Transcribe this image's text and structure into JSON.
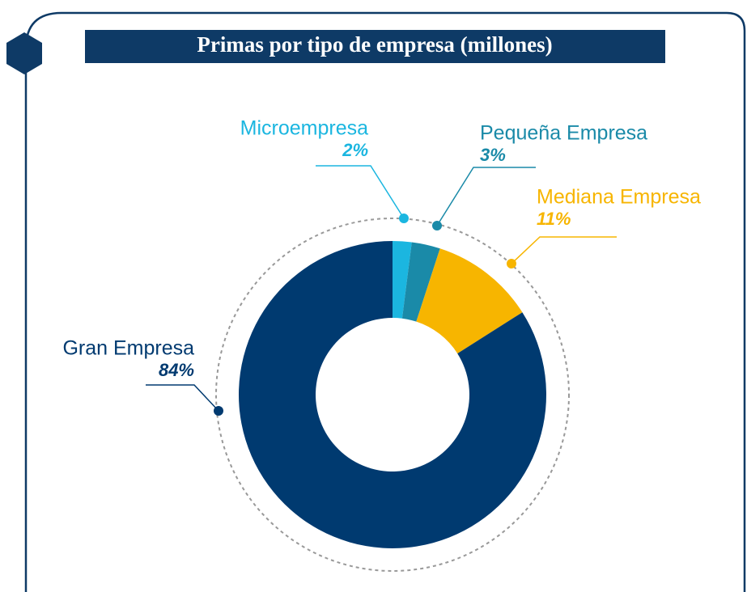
{
  "chart_data": {
    "type": "donut",
    "title": "Primas por tipo de empresa (millones)",
    "categories": [
      "Microempresa",
      "Pequeña Empresa",
      "Mediana Empresa",
      "Gran Empresa"
    ],
    "values": [
      2,
      3,
      11,
      84
    ],
    "value_labels": [
      "2%",
      "3%",
      "11%",
      "84%"
    ],
    "colors": [
      "#1bb6e0",
      "#1a8aa8",
      "#f7b500",
      "#003a70"
    ]
  }
}
